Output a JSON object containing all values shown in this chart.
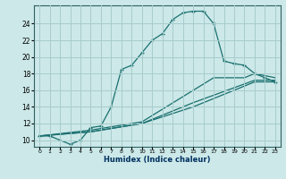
{
  "xlabel": "Humidex (Indice chaleur)",
  "background_color": "#cce8e8",
  "grid_color": "#a8cccc",
  "line_color": "#1a7070",
  "xlim": [
    -0.5,
    23.5
  ],
  "ylim": [
    9.2,
    26.2
  ],
  "xticks": [
    0,
    1,
    2,
    3,
    4,
    5,
    6,
    7,
    8,
    9,
    10,
    11,
    12,
    13,
    14,
    15,
    16,
    17,
    18,
    19,
    20,
    21,
    22,
    23
  ],
  "yticks": [
    10,
    12,
    14,
    16,
    18,
    20,
    22,
    24
  ],
  "curve_main_x": [
    0,
    1,
    3,
    4,
    5,
    6,
    7,
    8,
    9,
    10,
    11,
    12,
    13,
    14,
    15,
    16,
    17
  ],
  "curve_main_y": [
    10.5,
    10.5,
    9.5,
    10.0,
    11.5,
    11.7,
    14.0,
    18.5,
    19.0,
    20.5,
    22.0,
    22.8,
    24.5,
    25.3,
    25.5,
    25.5,
    24.0
  ],
  "curve_drop_x": [
    17,
    18,
    19,
    20,
    21,
    22,
    23
  ],
  "curve_drop_y": [
    24.0,
    19.5,
    19.2,
    19.0,
    18.0,
    17.5,
    17.0
  ],
  "line_lower1_x": [
    0,
    5,
    10,
    15,
    21,
    23
  ],
  "line_lower1_y": [
    10.5,
    11.0,
    12.0,
    14.0,
    17.0,
    17.0
  ],
  "line_lower2_x": [
    0,
    5,
    10,
    17,
    20,
    21,
    23
  ],
  "line_lower2_y": [
    10.5,
    11.2,
    12.2,
    17.5,
    17.5,
    18.0,
    17.5
  ],
  "line_lower3_x": [
    0,
    5,
    10,
    15,
    21,
    23
  ],
  "line_lower3_y": [
    10.5,
    11.0,
    12.0,
    14.5,
    17.2,
    17.2
  ]
}
